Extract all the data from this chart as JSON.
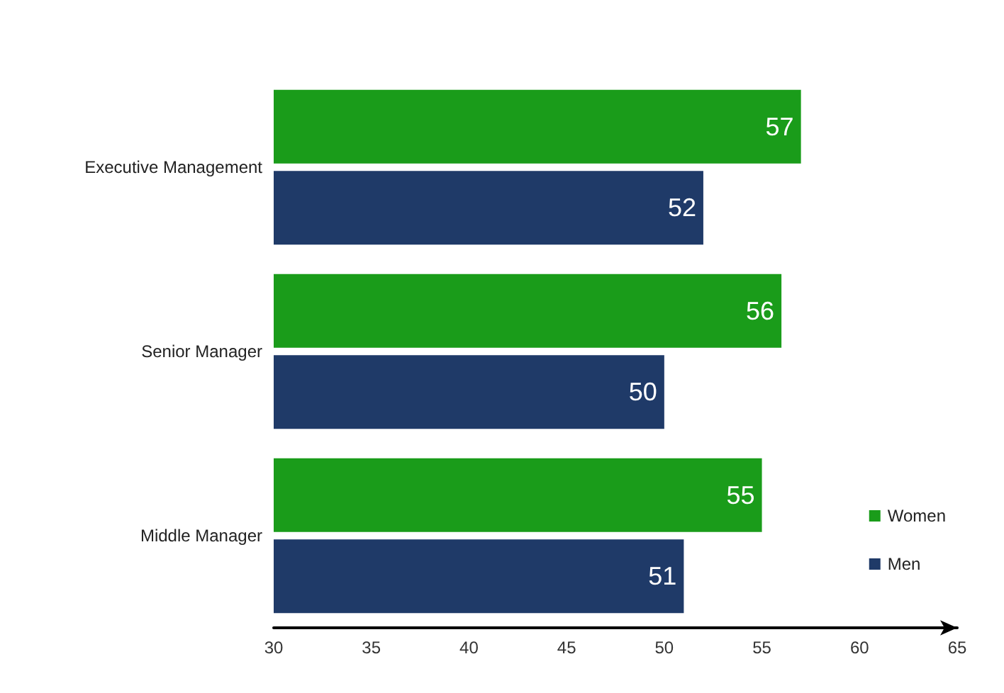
{
  "chart_data": {
    "type": "bar",
    "orientation": "horizontal",
    "categories": [
      "Executive Management",
      "Senior Manager",
      "Middle Manager"
    ],
    "series": [
      {
        "name": "Women",
        "color": "#1a9c1a",
        "values": [
          57,
          56,
          55
        ]
      },
      {
        "name": "Men",
        "color": "#1f3a68",
        "values": [
          52,
          50,
          51
        ]
      }
    ],
    "xlim": [
      30,
      65
    ],
    "xticks": [
      30,
      35,
      40,
      45,
      50,
      55,
      60,
      65
    ],
    "data_labels": true,
    "grid": false,
    "legend": "bottom right"
  }
}
